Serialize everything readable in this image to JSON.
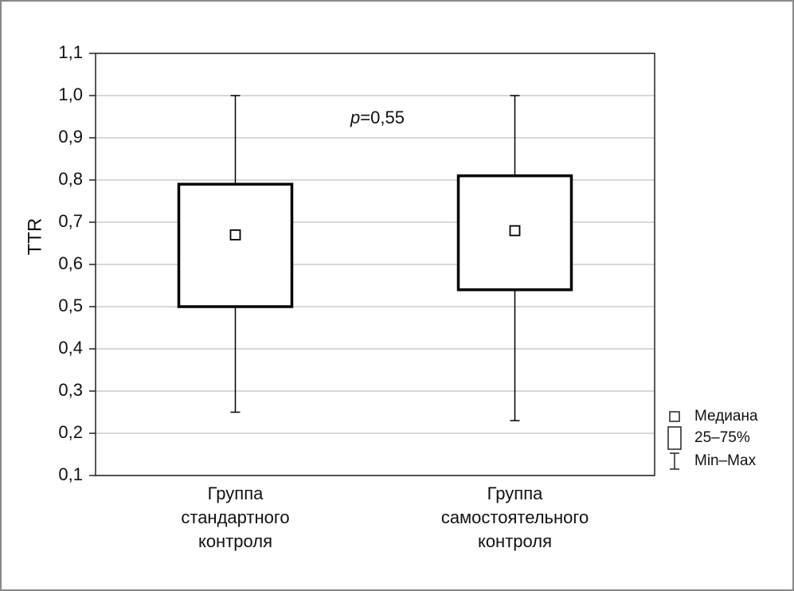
{
  "chart_data": {
    "type": "box",
    "y_label": "TTR",
    "annotation": {
      "variable": "p",
      "text": "=0,55"
    },
    "categories": [
      "Группа стандартного контроля",
      "Группа самостоятельного контроля"
    ],
    "min": [
      0.25,
      0.23
    ],
    "q1": [
      0.5,
      0.54
    ],
    "median": [
      0.67,
      0.68
    ],
    "q3": [
      0.79,
      0.81
    ],
    "max": [
      1.0,
      1.0
    ],
    "ylim": [
      0.1,
      1.1
    ],
    "yticks": [
      {
        "value": 0.1,
        "label": "0,1"
      },
      {
        "value": 0.2,
        "label": "0,2"
      },
      {
        "value": 0.3,
        "label": "0,3"
      },
      {
        "value": 0.4,
        "label": "0,4"
      },
      {
        "value": 0.5,
        "label": "0,5"
      },
      {
        "value": 0.6,
        "label": "0,6"
      },
      {
        "value": 0.7,
        "label": "0,7"
      },
      {
        "value": 0.8,
        "label": "0,8"
      },
      {
        "value": 0.9,
        "label": "0,9"
      },
      {
        "value": 1.0,
        "label": "1,0"
      },
      {
        "value": 1.1,
        "label": "1,1"
      }
    ],
    "grid": true,
    "color": "#000000",
    "legend": [
      "Медиана",
      "25–75%",
      "Min–Max"
    ]
  }
}
